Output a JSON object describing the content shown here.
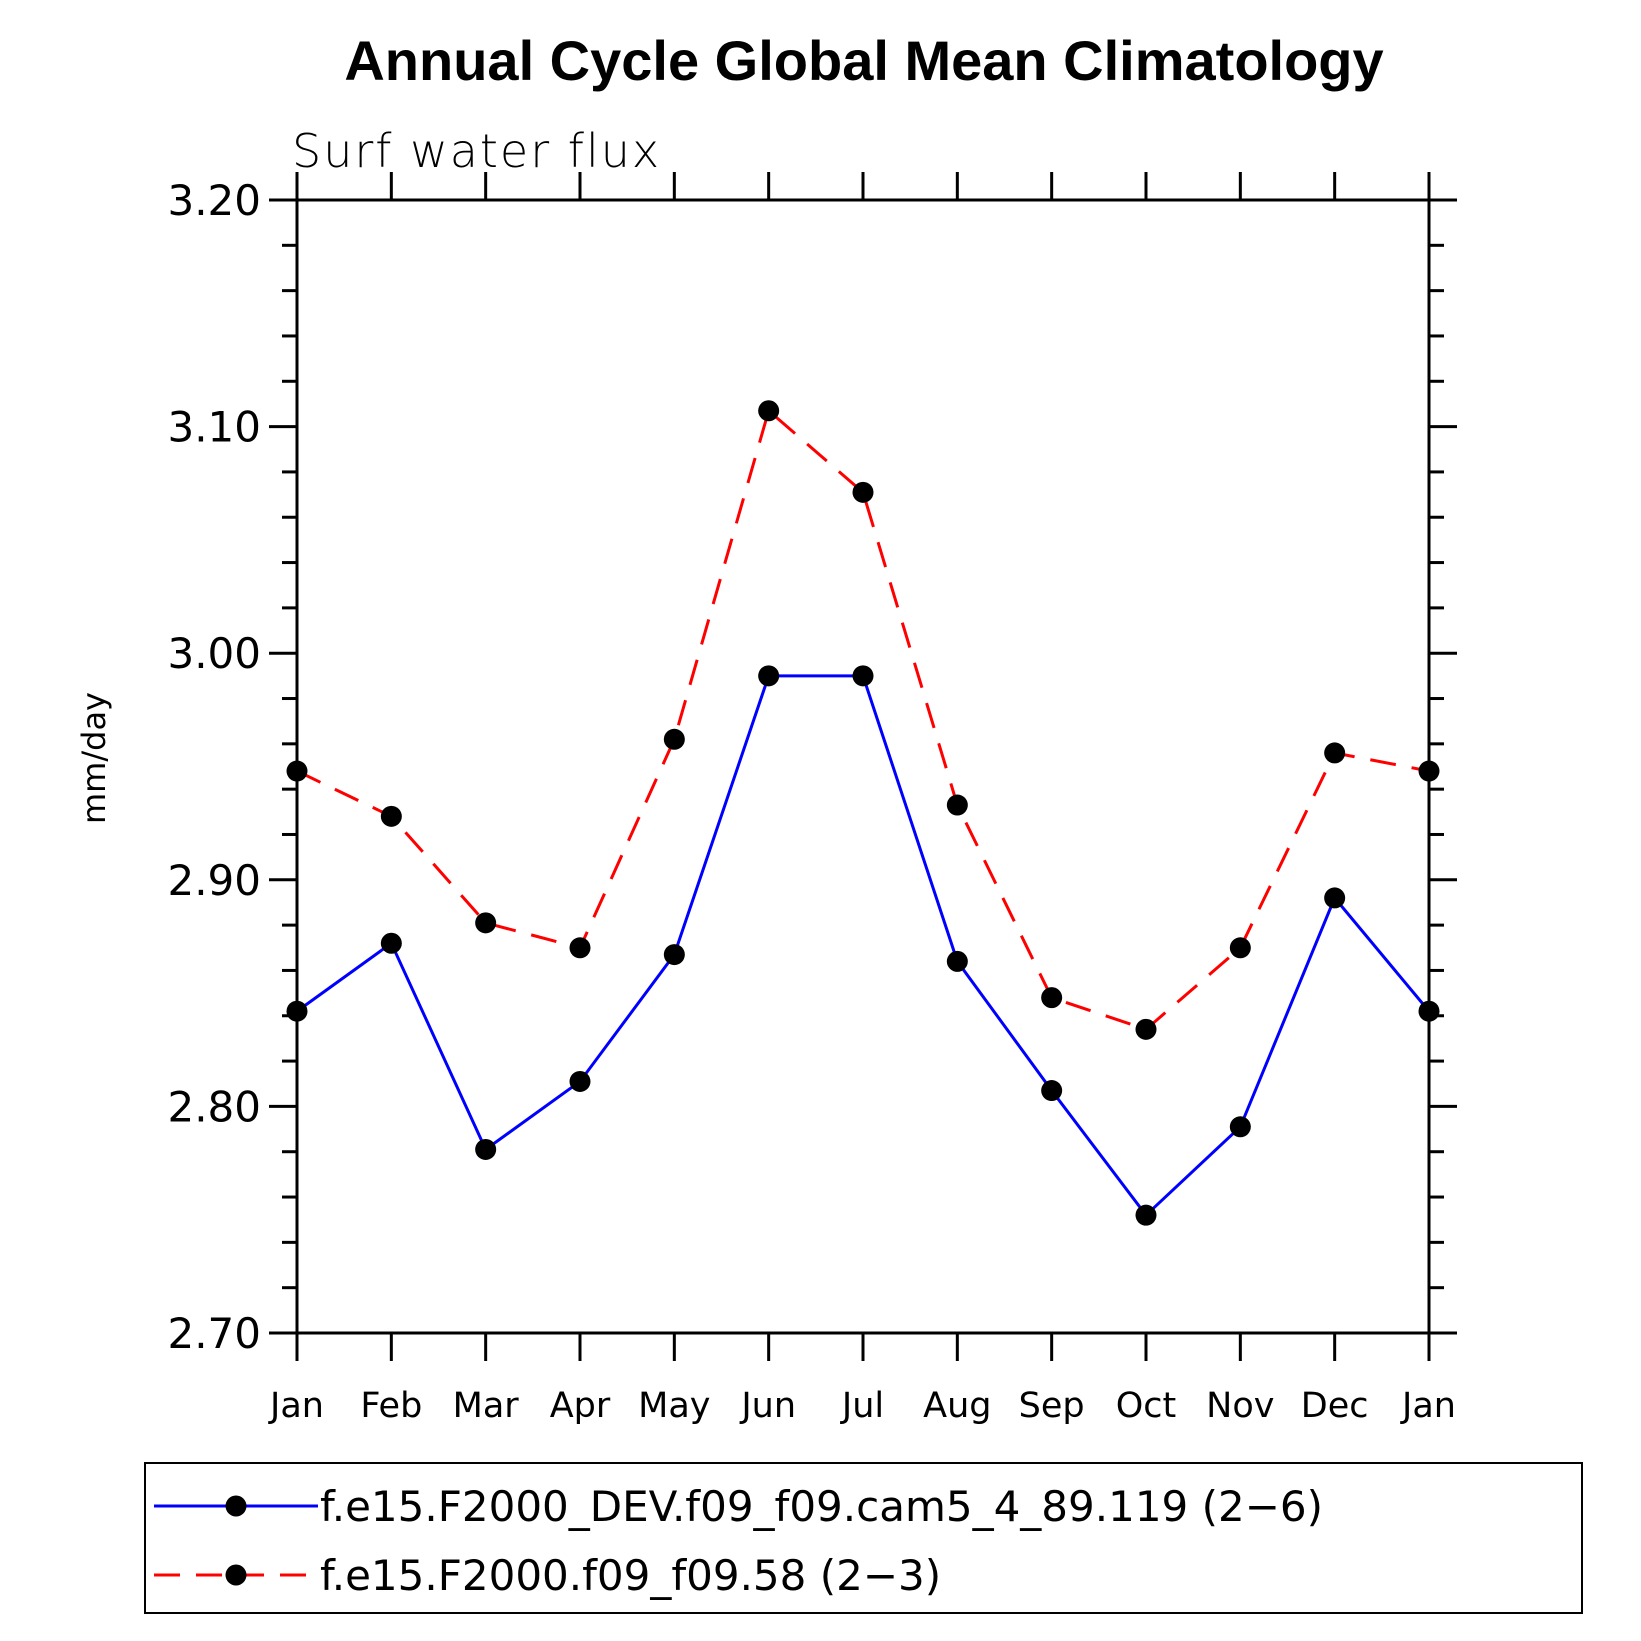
{
  "chart_data": {
    "type": "line",
    "title": "Annual Cycle Global Mean Climatology",
    "subtitle": "Surf water flux",
    "xlabel": "",
    "ylabel": "mm/day",
    "categories": [
      "Jan",
      "Feb",
      "Mar",
      "Apr",
      "May",
      "Jun",
      "Jul",
      "Aug",
      "Sep",
      "Oct",
      "Nov",
      "Dec",
      "Jan"
    ],
    "ylim": [
      2.7,
      3.2
    ],
    "yticks": [
      "2.70",
      "2.80",
      "2.90",
      "3.00",
      "3.10",
      "3.20"
    ],
    "legend_position": "bottom",
    "series": [
      {
        "name": "f.e15.F2000_DEV.f09_f09.cam5_4_89.119 (2−6)",
        "color": "#0000ff",
        "style": "solid",
        "marker": "filled-circle",
        "values": [
          2.842,
          2.872,
          2.781,
          2.811,
          2.867,
          2.99,
          2.99,
          2.864,
          2.807,
          2.752,
          2.791,
          2.892,
          2.842
        ]
      },
      {
        "name": "f.e15.F2000.f09_f09.58 (2−3)",
        "color": "#ff0000",
        "style": "dashed",
        "marker": "filled-circle",
        "values": [
          2.948,
          2.928,
          2.881,
          2.87,
          2.962,
          3.107,
          3.071,
          2.933,
          2.848,
          2.834,
          2.87,
          2.956,
          2.948
        ]
      }
    ]
  }
}
